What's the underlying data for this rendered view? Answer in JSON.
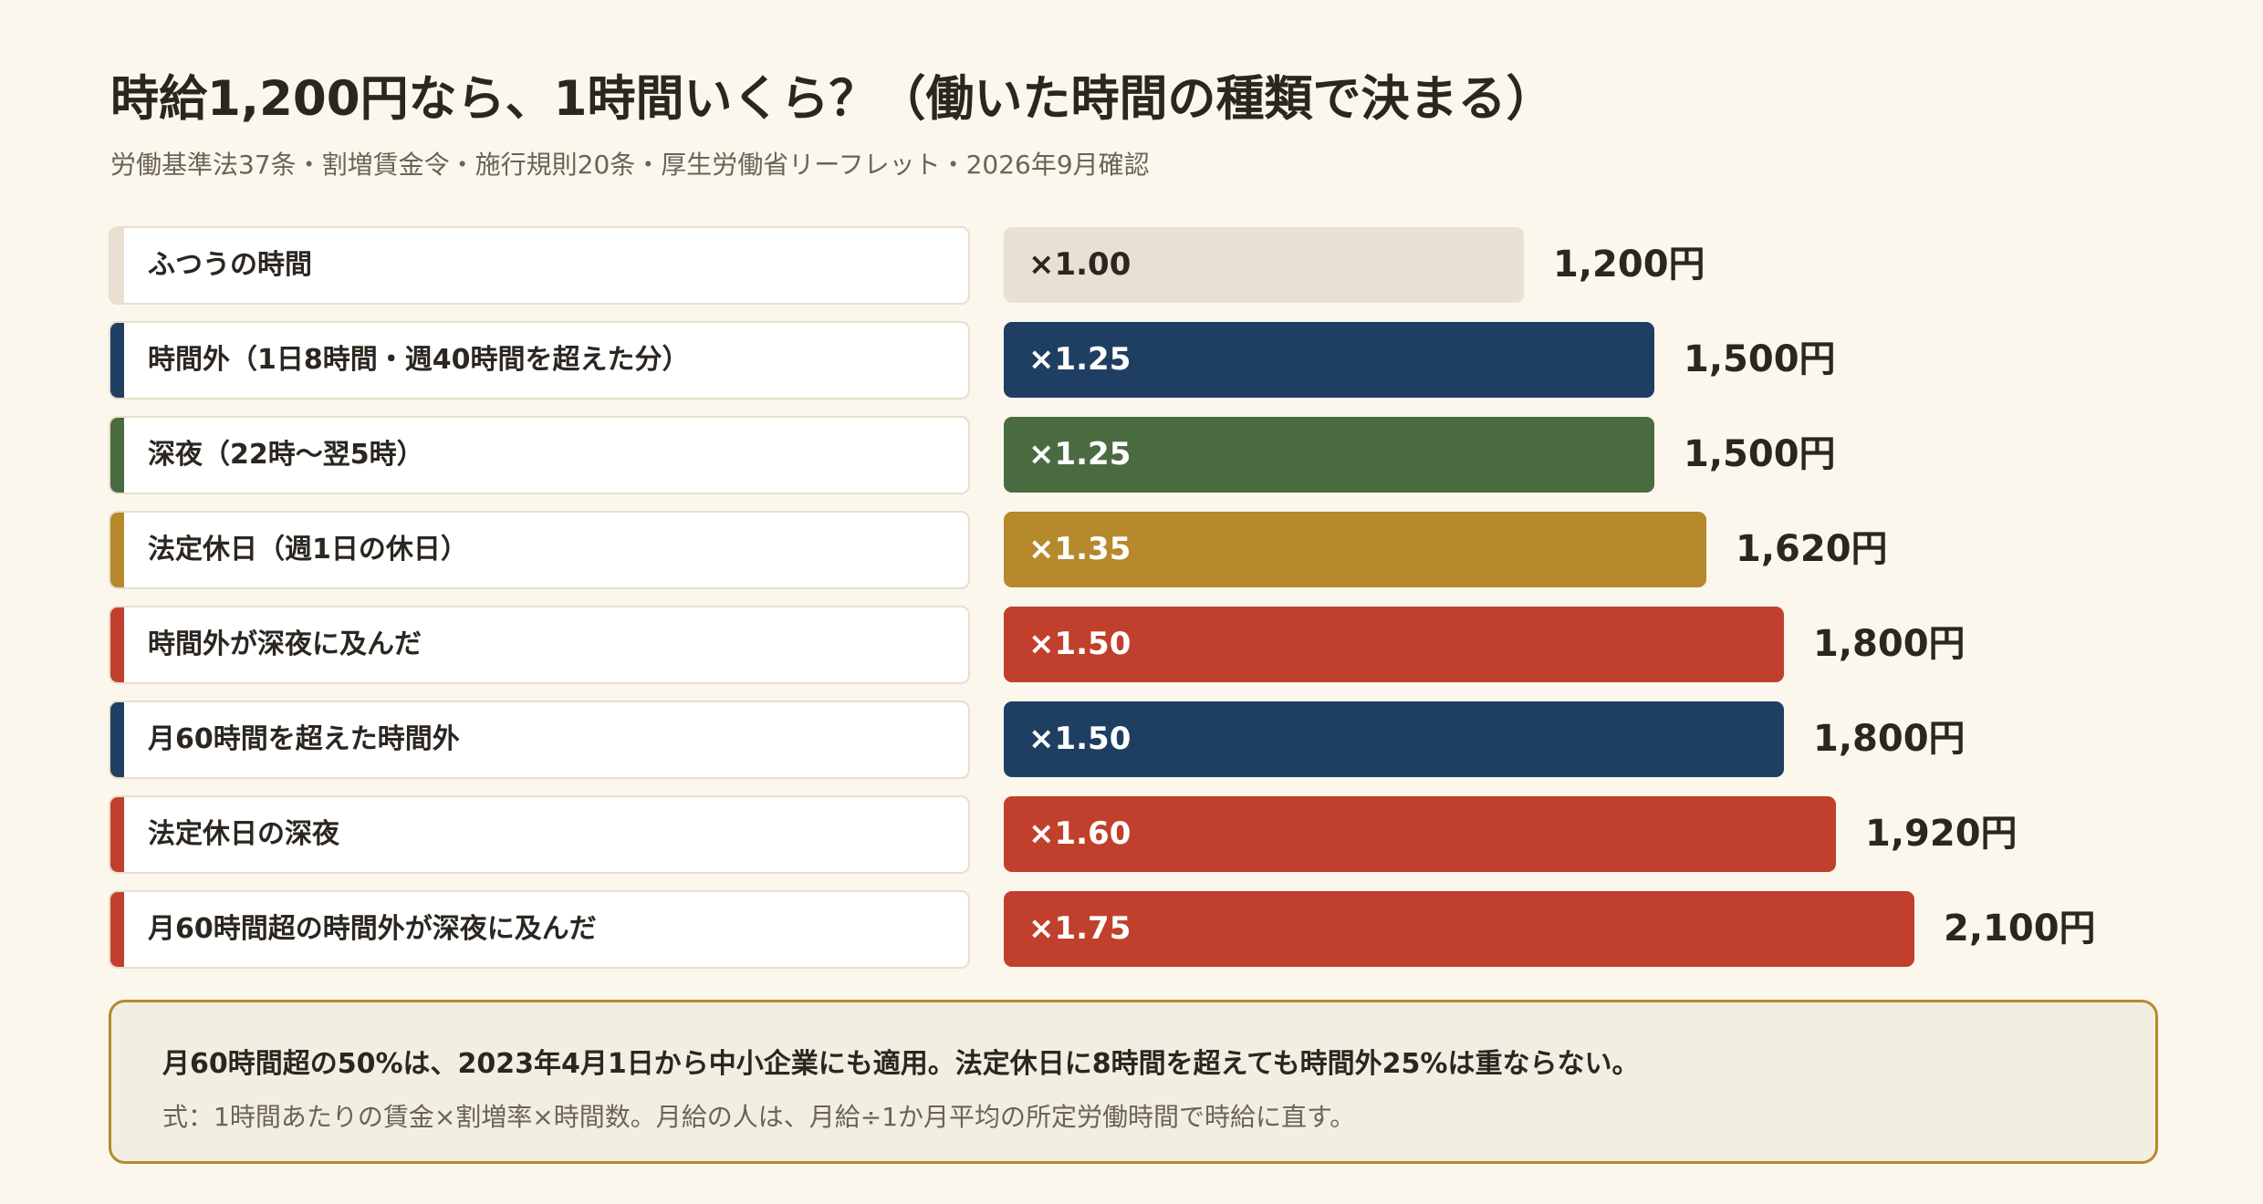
{
  "header": {
    "title": "時給1,200円なら、1時間いくら？（働いた時間の種類で決まる）",
    "subtitle": "労働基準法37条・割増賃金令・施行規則20条・厚生労働省リーフレット・2026年9月確認"
  },
  "chart_data": {
    "type": "bar",
    "orientation": "horizontal",
    "title": "時給1,200円なら、1時間いくら？（働いた時間の種類で決まる）",
    "subtitle": "労働基準法37条・割増賃金令・施行規則20条・厚生労働省リーフレット・2026年9月確認",
    "base_wage": 1200,
    "rows": [
      {
        "label": "ふつうの時間",
        "rate": 1.0,
        "rate_label": "×1.00",
        "amount": 1200,
        "amount_label": "1,200円",
        "color": "#e8e1d3",
        "text_color": "#2b2620"
      },
      {
        "label": "時間外（1日8時間・週40時間を超えた分）",
        "rate": 1.25,
        "rate_label": "×1.25",
        "amount": 1500,
        "amount_label": "1,500円",
        "color": "#1e3f62",
        "text_color": "#ffffff"
      },
      {
        "label": "深夜（22時〜翌5時）",
        "rate": 1.25,
        "rate_label": "×1.25",
        "amount": 1500,
        "amount_label": "1,500円",
        "color": "#4a6b40",
        "text_color": "#ffffff"
      },
      {
        "label": "法定休日（週1日の休日）",
        "rate": 1.35,
        "rate_label": "×1.35",
        "amount": 1620,
        "amount_label": "1,620円",
        "color": "#b5892c",
        "text_color": "#ffffff"
      },
      {
        "label": "時間外が深夜に及んだ",
        "rate": 1.5,
        "rate_label": "×1.50",
        "amount": 1800,
        "amount_label": "1,800円",
        "color": "#c0402d",
        "text_color": "#ffffff"
      },
      {
        "label": "月60時間を超えた時間外",
        "rate": 1.5,
        "rate_label": "×1.50",
        "amount": 1800,
        "amount_label": "1,800円",
        "color": "#1e3f62",
        "text_color": "#ffffff"
      },
      {
        "label": "法定休日の深夜",
        "rate": 1.6,
        "rate_label": "×1.60",
        "amount": 1920,
        "amount_label": "1,920円",
        "color": "#c0402d",
        "text_color": "#ffffff"
      },
      {
        "label": "月60時間超の時間外が深夜に及んだ",
        "rate": 1.75,
        "rate_label": "×1.75",
        "amount": 2100,
        "amount_label": "2,100円",
        "color": "#c0402d",
        "text_color": "#ffffff"
      }
    ],
    "grid": false,
    "legend": "none"
  },
  "note": {
    "main": "月60時間超の50%は、2023年4月1日から中小企業にも適用。法定休日に8時間を超えても時間外25%は重ならない。",
    "sub": "式：1時間あたりの賃金×割増率×時間数。月給の人は、月給÷1か月平均の所定労働時間で時給に直す。",
    "border_color": "#b5892c"
  }
}
